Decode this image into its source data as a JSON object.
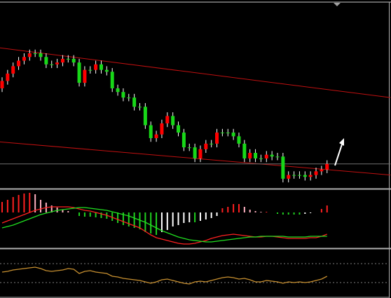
{
  "chart_data": [
    {
      "type": "candlestick",
      "ylim": [
        0,
        100
      ],
      "up_color": "#ff0000",
      "down_color": "#18d818",
      "wick_color": "#ffffff",
      "open": [
        54,
        58,
        62,
        66,
        69,
        71,
        73,
        73,
        71,
        67,
        67,
        68,
        70,
        70,
        68,
        57,
        64,
        64,
        67,
        64,
        63,
        54,
        52,
        49,
        49,
        44,
        44,
        34,
        27,
        29,
        35,
        39,
        34,
        30,
        22,
        22,
        16,
        21,
        24,
        24,
        30,
        30,
        30,
        28,
        24,
        16,
        19,
        16,
        16,
        18,
        17,
        17,
        5,
        7,
        7,
        7,
        6,
        7,
        9,
        10
      ],
      "high": [
        60,
        64,
        68,
        71,
        73,
        75,
        75,
        75,
        73,
        69,
        70,
        72,
        72,
        72,
        70,
        66,
        66,
        69,
        69,
        66,
        65,
        56,
        54,
        51,
        51,
        46,
        46,
        36,
        31,
        37,
        41,
        41,
        36,
        32,
        24,
        24,
        23,
        26,
        26,
        32,
        32,
        32,
        32,
        30,
        26,
        21,
        21,
        18,
        20,
        20,
        19,
        19,
        9,
        9,
        9,
        9,
        9,
        11,
        12,
        15
      ],
      "low": [
        52,
        56,
        60,
        64,
        67,
        69,
        71,
        69,
        65,
        65,
        65,
        66,
        68,
        66,
        55,
        55,
        62,
        62,
        62,
        61,
        52,
        50,
        47,
        47,
        42,
        42,
        32,
        25,
        25,
        27,
        33,
        32,
        28,
        20,
        20,
        14,
        14,
        19,
        22,
        22,
        28,
        28,
        26,
        22,
        14,
        14,
        14,
        14,
        14,
        15,
        15,
        3,
        3,
        5,
        5,
        4,
        4,
        5,
        7,
        8
      ],
      "close": [
        58,
        62,
        66,
        69,
        71,
        73,
        73,
        71,
        67,
        67,
        68,
        70,
        70,
        68,
        57,
        64,
        64,
        67,
        64,
        63,
        54,
        52,
        49,
        49,
        44,
        44,
        34,
        27,
        29,
        35,
        39,
        34,
        30,
        22,
        22,
        16,
        21,
        24,
        24,
        30,
        30,
        30,
        28,
        24,
        16,
        19,
        16,
        16,
        18,
        17,
        17,
        5,
        7,
        7,
        7,
        6,
        7,
        9,
        10,
        13
      ],
      "trendlines": [
        {
          "x": [
            -0.5,
            70.5
          ],
          "y": [
            76,
            49
          ],
          "color": "#c01010"
        },
        {
          "x": [
            -0.5,
            70.5
          ],
          "y": [
            25,
            7
          ],
          "color": "#c01010"
        },
        {
          "x": [
            -0.5,
            70.5
          ],
          "y": [
            13,
            13
          ],
          "color": "#707070"
        }
      ]
    },
    {
      "type": "macd",
      "ylim": [
        -50,
        32
      ],
      "histogram": [
        15,
        18,
        22,
        25,
        27,
        28,
        26,
        18,
        14,
        10,
        7,
        4,
        2,
        0,
        -5,
        -6,
        -6,
        -7,
        -8,
        -9,
        -12,
        -15,
        -18,
        -20,
        -22,
        -24,
        -28,
        -30,
        -32,
        -28,
        -25,
        -20,
        -18,
        -15,
        -14,
        -14,
        -12,
        -10,
        -8,
        -5,
        6,
        8,
        12,
        12,
        8,
        4,
        2,
        1,
        1,
        0,
        -2,
        -3,
        -3,
        -3,
        -3,
        -2,
        -1,
        0,
        5,
        10
      ],
      "hist_colors": {
        "pos_rise": "#ff2020",
        "pos_fall": "#ffb0c0",
        "neg_fall": "#20d020",
        "neg_rise": "#ffffff"
      },
      "series": [
        {
          "color": "#ff2020",
          "values": [
            -15,
            -12,
            -9,
            -6,
            -3,
            0,
            3,
            5,
            7,
            8,
            8,
            8,
            8,
            7,
            5,
            3,
            2,
            0,
            -2,
            -4,
            -7,
            -10,
            -13,
            -16,
            -19,
            -22,
            -27,
            -32,
            -36,
            -38,
            -40,
            -42,
            -44,
            -45,
            -45,
            -44,
            -42,
            -40,
            -37,
            -35,
            -33,
            -32,
            -31,
            -32,
            -33,
            -34,
            -35,
            -35,
            -34,
            -34,
            -35,
            -36,
            -37,
            -37,
            -37,
            -37,
            -36,
            -36,
            -34,
            -31
          ]
        },
        {
          "color": "#20e020",
          "values": [
            -22,
            -20,
            -18,
            -15,
            -12,
            -9,
            -6,
            -3,
            -1,
            1,
            3,
            4,
            5,
            6,
            7,
            7,
            6,
            5,
            4,
            3,
            1,
            -1,
            -3,
            -5,
            -8,
            -11,
            -14,
            -18,
            -22,
            -26,
            -29,
            -32,
            -35,
            -37,
            -39,
            -40,
            -41,
            -42,
            -42,
            -41,
            -40,
            -39,
            -38,
            -37,
            -36,
            -35,
            -35,
            -34,
            -34,
            -34,
            -34,
            -34,
            -35,
            -35,
            -35,
            -35,
            -34,
            -34,
            -34,
            -34
          ]
        }
      ]
    },
    {
      "type": "oscillator",
      "ylim": [
        0,
        68
      ],
      "levels": [
        48,
        21
      ],
      "level_color": "#808080",
      "series": [
        {
          "color": "#c89030",
          "values": [
            36,
            37,
            39,
            40,
            41,
            42,
            43,
            41,
            38,
            37,
            38,
            39,
            41,
            40,
            34,
            37,
            38,
            36,
            35,
            34,
            30,
            29,
            27,
            26,
            25,
            24,
            22,
            20,
            22,
            25,
            26,
            24,
            22,
            20,
            19,
            22,
            23,
            22,
            24,
            26,
            28,
            29,
            28,
            26,
            27,
            25,
            22,
            22,
            24,
            23,
            22,
            20,
            22,
            21,
            22,
            21,
            22,
            24,
            26,
            30
          ]
        }
      ]
    }
  ]
}
